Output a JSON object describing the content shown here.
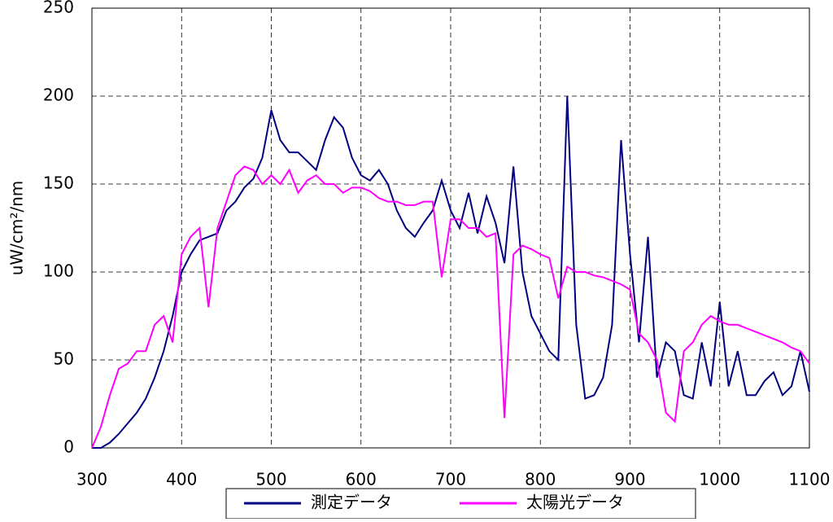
{
  "chart_data": {
    "type": "line",
    "y_label": "uW/cm²/nm",
    "grid": true,
    "legend": "bottom",
    "x": [
      300,
      310,
      320,
      330,
      340,
      350,
      360,
      370,
      380,
      390,
      400,
      410,
      420,
      430,
      440,
      450,
      460,
      470,
      480,
      490,
      500,
      510,
      520,
      530,
      540,
      550,
      560,
      570,
      580,
      590,
      600,
      610,
      620,
      630,
      640,
      650,
      660,
      670,
      680,
      690,
      700,
      710,
      720,
      730,
      740,
      750,
      760,
      770,
      780,
      790,
      800,
      810,
      820,
      830,
      840,
      850,
      860,
      870,
      880,
      890,
      900,
      910,
      920,
      930,
      940,
      950,
      960,
      970,
      980,
      990,
      1000,
      1010,
      1020,
      1030,
      1040,
      1050,
      1060,
      1070,
      1080,
      1090,
      1100
    ],
    "series": [
      {
        "name": "測定データ",
        "color": "#000080",
        "values": [
          0,
          0,
          3,
          8,
          14,
          20,
          28,
          40,
          55,
          75,
          100,
          110,
          118,
          120,
          122,
          135,
          140,
          148,
          153,
          165,
          192,
          175,
          168,
          168,
          163,
          158,
          175,
          188,
          182,
          165,
          155,
          152,
          158,
          150,
          135,
          125,
          120,
          128,
          135,
          152,
          135,
          125,
          145,
          122,
          143,
          128,
          105,
          160,
          100,
          75,
          65,
          55,
          50,
          200,
          70,
          28,
          30,
          40,
          70,
          175,
          110,
          60,
          120,
          40,
          60,
          55,
          30,
          28,
          60,
          35,
          83,
          35,
          55,
          30,
          30,
          38,
          43,
          30,
          35,
          55,
          32
        ]
      },
      {
        "name": "太陽光データ",
        "color": "#ff00ff",
        "values": [
          0,
          12,
          30,
          45,
          48,
          55,
          55,
          70,
          75,
          60,
          110,
          120,
          125,
          80,
          125,
          140,
          155,
          160,
          158,
          150,
          155,
          150,
          158,
          145,
          152,
          155,
          150,
          150,
          145,
          148,
          148,
          146,
          142,
          140,
          140,
          138,
          138,
          140,
          140,
          97,
          130,
          130,
          125,
          125,
          120,
          122,
          17,
          110,
          115,
          113,
          110,
          108,
          85,
          103,
          100,
          100,
          98,
          97,
          95,
          93,
          90,
          65,
          60,
          50,
          20,
          15,
          55,
          60,
          70,
          75,
          72,
          70,
          70,
          68,
          66,
          64,
          62,
          60,
          57,
          55,
          48
        ]
      }
    ],
    "xlim": [
      300,
      1100
    ],
    "xticks": [
      300,
      400,
      500,
      600,
      700,
      800,
      900,
      1000,
      1100
    ],
    "ylim": [
      0,
      250
    ],
    "yticks": [
      0,
      50,
      100,
      150,
      200,
      250
    ]
  }
}
